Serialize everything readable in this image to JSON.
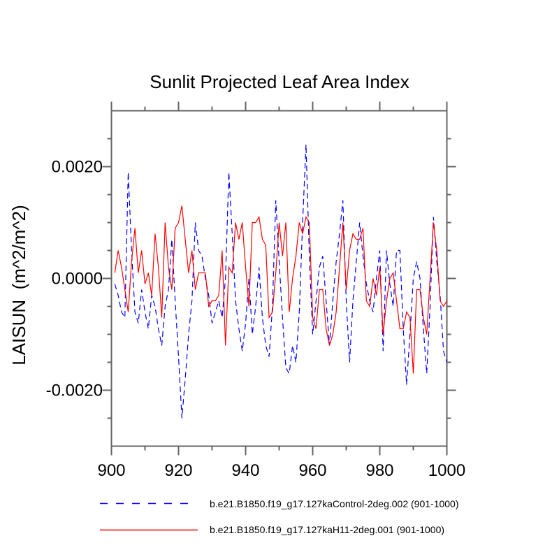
{
  "title": "Sunlit Projected Leaf Area Index",
  "colors": {
    "frame": "#646464",
    "control_series": "#0000ff",
    "h11_series": "#ff0000",
    "background": "#ffffff",
    "text": "#000000"
  },
  "chart_data": {
    "type": "line",
    "title": "Sunlit Projected Leaf Area Index",
    "xlabel": "",
    "ylabel": "LAISUN  (m^2/m^2)",
    "xlim": [
      900,
      1000
    ],
    "ylim": [
      -0.003,
      0.003
    ],
    "grid": false,
    "legend_position": "below-plot",
    "x_start": 901,
    "x_end": 1000,
    "x_step": 1,
    "x_ticks": [
      900,
      920,
      940,
      960,
      980,
      1000
    ],
    "x_minor_ticks": [
      910,
      930,
      950,
      970,
      990
    ],
    "y_ticks": [
      {
        "value": 0.002,
        "label": "0.0020"
      },
      {
        "value": 0.0,
        "label": "0.0000"
      },
      {
        "value": -0.002,
        "label": "-0.0020"
      }
    ],
    "y_minor_ticks": [
      0.0025,
      0.0015,
      0.001,
      0.0005,
      -0.0005,
      -0.001,
      -0.0015,
      -0.0025
    ],
    "series": [
      {
        "name": "b.e21.B1850.f19_g17.127kaControl-2deg.002 (901-1000)",
        "color": "#0000ff",
        "style": "dashed",
        "values": [
          -0.0001,
          -0.0003,
          -0.0006,
          -0.0007,
          0.0019,
          0.0005,
          -0.0006,
          -0.0008,
          -0.0002,
          -0.0006,
          -0.0009,
          -0.0003,
          -0.0005,
          -0.0009,
          -0.0012,
          -0.0005,
          -0.0002,
          0.0007,
          -0.0004,
          -0.0014,
          -0.0025,
          -0.0018,
          -0.001,
          -0.0004,
          0.001,
          0.0005,
          0.0004,
          0.0,
          -0.0003,
          -0.0008,
          -0.0006,
          -0.0004,
          -0.0007,
          0.0,
          0.0019,
          0.0008,
          -0.0004,
          -0.0009,
          -0.0013,
          -0.0008,
          0.0,
          -0.001,
          -0.0005,
          0.0002,
          -0.0007,
          -0.0012,
          -0.0014,
          -0.0005,
          0.0014,
          0.0003,
          -0.0007,
          -0.0016,
          -0.0017,
          -0.0012,
          -0.0015,
          -0.0006,
          0.001,
          0.0024,
          0.0004,
          -0.001,
          -0.0004,
          0.0002,
          0.0004,
          -0.0004,
          -0.0012,
          -0.0004,
          0.0003,
          0.0008,
          0.0014,
          -0.0004,
          -0.0015,
          -0.0004,
          0.0003,
          0.001,
          0.0004,
          -0.0001,
          -0.0004,
          -0.0006,
          0.0,
          0.0005,
          -0.0013,
          0.0005,
          -0.0001,
          -0.0005,
          0.0005,
          0.0005,
          -0.0009,
          -0.0019,
          -0.001,
          0.0,
          0.0003,
          0.0,
          -0.0009,
          -0.0017,
          -0.0005,
          0.0011,
          0.0003,
          -0.0003,
          -0.0013,
          -0.0015
        ]
      },
      {
        "name": "b.e21.B1850.f19_g17.127kaH11-2deg.001 (901-1000)",
        "color": "#ff0000",
        "style": "solid",
        "values": [
          0.0001,
          0.0005,
          0.0002,
          -0.0002,
          -0.0006,
          0.0003,
          0.0009,
          0.0001,
          0.0005,
          -0.0001,
          0.0001,
          -0.0003,
          0.0008,
          0.0002,
          -0.0007,
          0.001,
          0.0002,
          -0.0002,
          0.0009,
          0.001,
          0.0013,
          0.0007,
          0.0001,
          0.0005,
          -0.0002,
          0.0001,
          0.0001,
          0.0001,
          -0.0005,
          -0.0004,
          -0.0004,
          -0.0003,
          0.0005,
          -0.0012,
          0.0002,
          0.0001,
          0.001,
          0.0007,
          0.001,
          0.0002,
          -0.0005,
          0.001,
          0.001,
          0.0011,
          0.0007,
          0.0006,
          -0.0007,
          -0.0006,
          0.0001,
          0.001,
          0.0004,
          0.001,
          -0.0006,
          0.0,
          0.0004,
          0.001,
          0.0008,
          0.0011,
          0.001,
          -0.0007,
          -0.0009,
          -0.0002,
          -0.0002,
          -0.0009,
          -0.0012,
          -0.001,
          -0.0006,
          0.0002,
          0.001,
          -0.0002,
          0.0005,
          0.0008,
          0.0007,
          0.0007,
          0.0009,
          -0.0004,
          -0.0005,
          0.0,
          -0.0003,
          0.0002,
          -0.001,
          -0.0004,
          0.0,
          0.0001,
          -0.0004,
          -0.0009,
          -0.0009,
          -0.0006,
          -0.0007,
          -0.0017,
          -0.0002,
          -0.0002,
          -0.0007,
          -0.001,
          0.0,
          0.001,
          0.0005,
          -0.0004,
          -0.0005,
          -0.0004
        ]
      }
    ]
  },
  "legend": {
    "items": [
      {
        "label": "b.e21.B1850.f19_g17.127kaControl-2deg.002 (901-1000)",
        "color": "#0000ff",
        "style": "dashed"
      },
      {
        "label": "b.e21.B1850.f19_g17.127kaH11-2deg.001 (901-1000)",
        "color": "#ff0000",
        "style": "solid"
      }
    ]
  }
}
